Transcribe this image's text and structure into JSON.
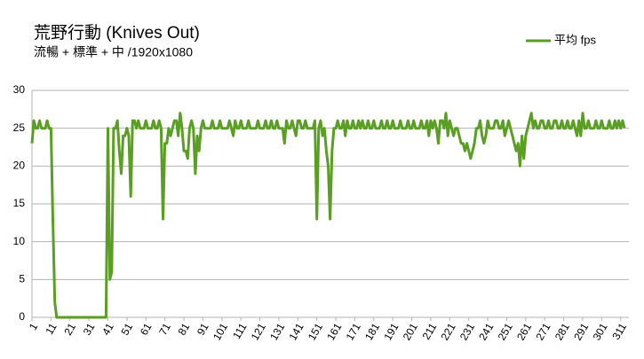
{
  "chart_data": {
    "type": "line",
    "title": "荒野行動 (Knives Out)",
    "subtitle": "流暢 + 標準 + 中 /1920x1080",
    "x": [
      1,
      2,
      3,
      4,
      5,
      6,
      7,
      8,
      9,
      10,
      11,
      12,
      13,
      14,
      15,
      16,
      17,
      18,
      19,
      20,
      21,
      22,
      23,
      24,
      25,
      26,
      27,
      28,
      29,
      30,
      31,
      32,
      33,
      34,
      35,
      36,
      37,
      38,
      39,
      40,
      41,
      42,
      43,
      44,
      45,
      46,
      47,
      48,
      49,
      50,
      51,
      52,
      53,
      54,
      55,
      56,
      57,
      58,
      59,
      60,
      61,
      62,
      63,
      64,
      65,
      66,
      67,
      68,
      69,
      70,
      71,
      72,
      73,
      74,
      75,
      76,
      77,
      78,
      79,
      80,
      81,
      82,
      83,
      84,
      85,
      86,
      87,
      88,
      89,
      90,
      91,
      92,
      93,
      94,
      95,
      96,
      97,
      98,
      99,
      100,
      101,
      102,
      103,
      104,
      105,
      106,
      107,
      108,
      109,
      110,
      111,
      112,
      113,
      114,
      115,
      116,
      117,
      118,
      119,
      120,
      121,
      122,
      123,
      124,
      125,
      126,
      127,
      128,
      129,
      130,
      131,
      132,
      133,
      134,
      135,
      136,
      137,
      138,
      139,
      140,
      141,
      142,
      143,
      144,
      145,
      146,
      147,
      148,
      149,
      150,
      151,
      152,
      153,
      154,
      155,
      156,
      157,
      158,
      159,
      160,
      161,
      162,
      163,
      164,
      165,
      166,
      167,
      168,
      169,
      170,
      171,
      172,
      173,
      174,
      175,
      176,
      177,
      178,
      179,
      180,
      181,
      182,
      183,
      184,
      185,
      186,
      187,
      188,
      189,
      190,
      191,
      192,
      193,
      194,
      195,
      196,
      197,
      198,
      199,
      200,
      201,
      202,
      203,
      204,
      205,
      206,
      207,
      208,
      209,
      210,
      211,
      212,
      213,
      214,
      215,
      216,
      217,
      218,
      219,
      220,
      221,
      222,
      223,
      224,
      225,
      226,
      227,
      228,
      229,
      230,
      231,
      232,
      233,
      234,
      235,
      236,
      237,
      238,
      239,
      240,
      241,
      242,
      243,
      244,
      245,
      246,
      247,
      248,
      249,
      250,
      251,
      252,
      253,
      254,
      255,
      256,
      257,
      258,
      259,
      260,
      261,
      262,
      263,
      264,
      265,
      266,
      267,
      268,
      269,
      270,
      271,
      272,
      273,
      274,
      275,
      276,
      277,
      278,
      279,
      280,
      281,
      282,
      283,
      284,
      285,
      286,
      287,
      288,
      289,
      290,
      291,
      292,
      293,
      294,
      295,
      296,
      297,
      298,
      299,
      300,
      301,
      302,
      303,
      304,
      305,
      306,
      307,
      308,
      309,
      310,
      311,
      312,
      313
    ],
    "series": [
      {
        "name": "平均 fps",
        "color": "#5a9e24",
        "values": [
          23,
          26,
          25,
          25,
          26,
          25,
          25,
          25,
          26,
          25,
          25,
          13,
          2,
          0,
          0,
          0,
          0,
          0,
          0,
          0,
          0,
          0,
          0,
          0,
          0,
          0,
          0,
          0,
          0,
          0,
          0,
          0,
          0,
          0,
          0,
          0,
          0,
          0,
          0,
          0,
          25,
          5,
          6,
          25,
          25,
          26,
          22,
          19,
          24,
          24,
          25,
          24,
          16,
          26,
          26,
          25,
          26,
          25,
          25,
          25,
          26,
          25,
          25,
          25,
          26,
          25,
          25,
          26,
          25,
          13,
          23,
          23,
          25,
          24,
          25,
          26,
          26,
          24,
          27,
          25,
          22,
          22,
          21,
          25,
          26,
          25,
          19,
          24,
          22,
          25,
          26,
          25,
          25,
          25,
          25,
          26,
          25,
          25,
          25,
          26,
          25,
          25,
          25,
          25,
          26,
          25,
          24,
          26,
          25,
          25,
          26,
          25,
          25,
          25,
          26,
          25,
          25,
          25,
          25,
          26,
          25,
          25,
          25,
          26,
          25,
          25,
          26,
          25,
          25,
          26,
          25,
          25,
          25,
          23,
          26,
          25,
          25,
          26,
          25,
          24,
          26,
          26,
          25,
          25,
          26,
          25,
          25,
          25,
          25,
          26,
          13,
          25,
          26,
          24,
          25,
          22,
          20,
          13,
          22,
          25,
          25,
          26,
          25,
          25,
          26,
          24,
          26,
          25,
          25,
          26,
          25,
          25,
          26,
          25,
          26,
          25,
          25,
          26,
          25,
          25,
          26,
          25,
          25,
          25,
          26,
          25,
          25,
          26,
          25,
          25,
          26,
          25,
          25,
          25,
          26,
          25,
          25,
          25,
          26,
          25,
          25,
          26,
          25,
          25,
          25,
          26,
          25,
          25,
          26,
          24,
          26,
          25,
          26,
          25,
          23,
          26,
          26,
          25,
          27,
          24,
          26,
          25,
          24,
          25,
          25,
          24,
          23,
          23,
          22,
          23,
          22,
          21,
          22,
          23,
          25,
          25,
          26,
          24,
          23,
          24,
          26,
          25,
          25,
          25,
          26,
          26,
          25,
          25,
          26,
          24,
          25,
          26,
          25,
          24,
          23,
          22,
          23,
          20,
          24,
          21,
          24,
          25,
          26,
          27,
          25,
          26,
          25,
          25,
          26,
          26,
          25,
          25,
          26,
          25,
          25,
          26,
          26,
          25,
          25,
          26,
          25,
          25,
          26,
          25,
          25,
          26,
          25,
          24,
          26,
          24,
          27,
          25,
          25,
          26,
          25,
          25,
          25,
          26,
          25,
          25,
          26,
          25,
          25,
          25,
          26,
          25,
          25,
          26,
          25,
          26,
          25,
          26,
          25
        ]
      }
    ],
    "xlim": [
      1,
      313
    ],
    "xticks": [
      1,
      11,
      21,
      31,
      41,
      51,
      61,
      71,
      81,
      91,
      101,
      111,
      121,
      131,
      141,
      151,
      161,
      171,
      181,
      191,
      201,
      211,
      221,
      231,
      241,
      251,
      261,
      271,
      281,
      291,
      301,
      311
    ],
    "ylim": [
      0,
      30
    ],
    "yticks": [
      0,
      5,
      10,
      15,
      20,
      25,
      30
    ],
    "grid": true,
    "legend": "top-right"
  }
}
